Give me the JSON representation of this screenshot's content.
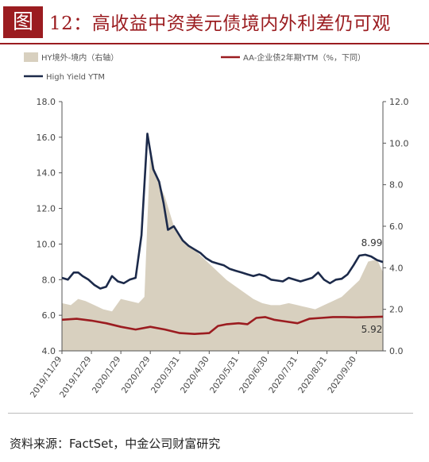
{
  "header": {
    "fig_label": "图",
    "title": "12：高收益中资美元债境内外利差仍可观"
  },
  "source": "资料来源：FactSet，中金公司财富研究",
  "chart_data": {
    "type": "line",
    "title": "高收益中资美元债境内外利差仍可观",
    "legend": [
      {
        "name": "HY境外-境内（右轴）",
        "kind": "area",
        "color": "#d8d0bf"
      },
      {
        "name": "AA-企业债2年期YTM（%，下同）",
        "kind": "line",
        "color": "#9b1c20"
      },
      {
        "name": "High Yield YTM",
        "kind": "line",
        "color": "#1c2a4a"
      }
    ],
    "x_ticks": [
      "2019/11/29",
      "2019/12/29",
      "2020/1/29",
      "2020/2/29",
      "2020/3/31",
      "2020/4/30",
      "2020/5/31",
      "2020/6/30",
      "2020/7/31",
      "2020/8/31",
      "2020/9/30"
    ],
    "y_left": {
      "min": 4.0,
      "max": 18.0,
      "ticks": [
        "18.0",
        "16.0",
        "14.0",
        "12.0",
        "10.0",
        "8.0",
        "6.0",
        "4.0"
      ]
    },
    "y_right": {
      "min": 0.0,
      "max": 12.0,
      "ticks": [
        "12.0",
        "10.0",
        "8.0",
        "6.0",
        "4.0",
        "2.0",
        "0.0"
      ]
    },
    "x_range": [
      0,
      10.9
    ],
    "annotations": [
      {
        "text": "8.99",
        "series": "High Yield YTM"
      },
      {
        "text": "5.92",
        "series": "AA-企业债2年期YTM"
      }
    ],
    "series": [
      {
        "name": "High Yield YTM",
        "axis": "left",
        "color": "#1c2a4a",
        "x": [
          0,
          0.2,
          0.4,
          0.55,
          0.7,
          0.9,
          1.1,
          1.3,
          1.5,
          1.7,
          1.9,
          2.1,
          2.3,
          2.5,
          2.7,
          2.9,
          3.1,
          3.3,
          3.45,
          3.6,
          3.8,
          3.95,
          4.1,
          4.3,
          4.5,
          4.7,
          4.9,
          5.1,
          5.3,
          5.5,
          5.7,
          5.9,
          6.1,
          6.3,
          6.5,
          6.7,
          6.9,
          7.1,
          7.3,
          7.5,
          7.7,
          7.9,
          8.1,
          8.3,
          8.5,
          8.7,
          8.9,
          9.1,
          9.3,
          9.5,
          9.7,
          9.9,
          10.1,
          10.3,
          10.5,
          10.7,
          10.9
        ],
        "y": [
          8.1,
          8.0,
          8.4,
          8.4,
          8.2,
          8.0,
          7.7,
          7.5,
          7.6,
          8.2,
          7.9,
          7.8,
          8.0,
          8.1,
          10.5,
          16.2,
          14.2,
          13.5,
          12.3,
          10.8,
          11.0,
          10.6,
          10.2,
          9.9,
          9.7,
          9.5,
          9.2,
          9.0,
          8.9,
          8.8,
          8.6,
          8.5,
          8.4,
          8.3,
          8.2,
          8.3,
          8.2,
          8.0,
          7.95,
          7.9,
          8.1,
          8.0,
          7.9,
          8.0,
          8.1,
          8.4,
          8.0,
          7.8,
          8.0,
          8.05,
          8.3,
          8.8,
          9.35,
          9.4,
          9.3,
          9.1,
          8.99
        ]
      },
      {
        "name": "AA-企业债2年期YTM",
        "axis": "left",
        "color": "#9b1c20",
        "x": [
          0,
          0.5,
          1.0,
          1.5,
          2.0,
          2.5,
          3.0,
          3.5,
          4.0,
          4.5,
          5.0,
          5.3,
          5.6,
          6.0,
          6.3,
          6.6,
          6.9,
          7.2,
          7.6,
          8.0,
          8.4,
          8.8,
          9.2,
          9.6,
          10.0,
          10.4,
          10.9
        ],
        "y": [
          5.75,
          5.8,
          5.7,
          5.55,
          5.35,
          5.2,
          5.35,
          5.2,
          5.0,
          4.95,
          5.0,
          5.4,
          5.5,
          5.55,
          5.5,
          5.85,
          5.9,
          5.75,
          5.65,
          5.55,
          5.8,
          5.85,
          5.9,
          5.9,
          5.88,
          5.9,
          5.92
        ]
      },
      {
        "name": "HY境外-境内",
        "axis": "right",
        "color": "#d8d0bf",
        "x": [
          0,
          0.3,
          0.55,
          0.8,
          1.1,
          1.4,
          1.7,
          2.0,
          2.3,
          2.6,
          2.8,
          3.0,
          3.2,
          3.5,
          3.8,
          4.1,
          4.4,
          4.7,
          5.0,
          5.3,
          5.6,
          5.9,
          6.2,
          6.5,
          6.8,
          7.1,
          7.4,
          7.7,
          8.0,
          8.3,
          8.6,
          8.9,
          9.2,
          9.5,
          9.8,
          10.1,
          10.4,
          10.7,
          10.9
        ],
        "y": [
          2.3,
          2.2,
          2.5,
          2.4,
          2.2,
          2.0,
          1.9,
          2.5,
          2.4,
          2.3,
          2.6,
          9.8,
          8.4,
          7.4,
          6.0,
          5.3,
          5.0,
          4.6,
          4.2,
          3.8,
          3.4,
          3.1,
          2.8,
          2.5,
          2.3,
          2.2,
          2.2,
          2.3,
          2.2,
          2.1,
          2.0,
          2.2,
          2.4,
          2.6,
          3.0,
          3.4,
          4.3,
          4.4,
          3.8
        ]
      }
    ]
  }
}
